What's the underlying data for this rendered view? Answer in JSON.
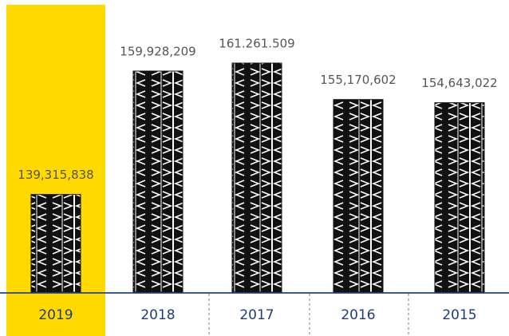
{
  "chart_data": {
    "type": "bar",
    "categories": [
      "2019",
      "2018",
      "2017",
      "2016",
      "2015"
    ],
    "values": [
      139315838,
      159928209,
      161261509,
      155170602,
      154643022
    ],
    "value_labels": [
      "139,315,838",
      "159,928,209",
      "161.261.509",
      "155,170,602",
      "154,643,022"
    ],
    "color": "#111111",
    "highlight": 0,
    "highlight_color": "#ffd900",
    "ylim": [
      123000000,
      163000000
    ]
  }
}
